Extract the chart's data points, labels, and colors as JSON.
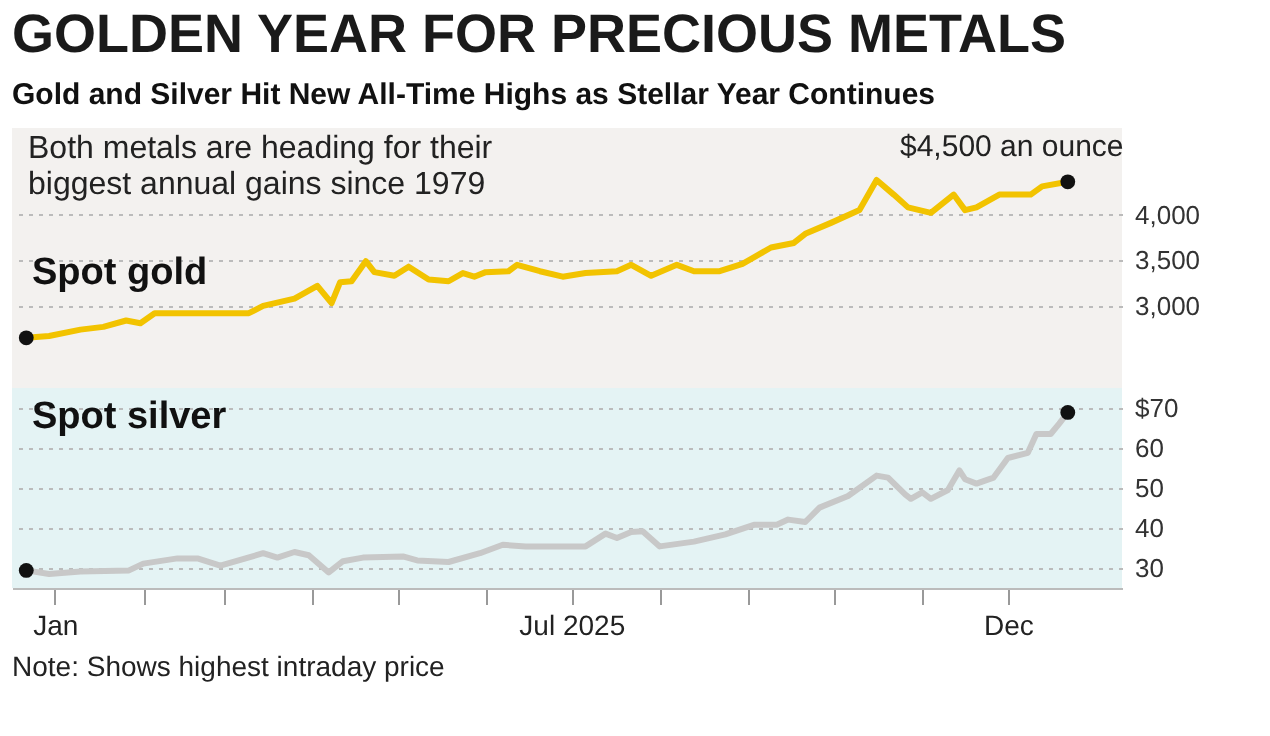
{
  "chart_data": [
    {
      "type": "line",
      "title": "GOLDEN YEAR FOR PRECIOUS METALS",
      "subtitle": "Gold and Silver Hit New All-Time Highs as Stellar Year Continues",
      "annotations": [
        "Both metals are heading for their biggest annual gains since 1979",
        {
          "text": "$4,500 an ounce",
          "x": "2025-12-22",
          "y": 4360
        }
      ],
      "tick_labels": "y",
      "grid": "y",
      "xlim": [
        "2024-12-17",
        "2026-01-10"
      ],
      "ylim": [
        2100,
        4950
      ],
      "yticks": [
        {
          "value": 3000,
          "label": "3,000"
        },
        {
          "value": 3500,
          "label": "3,500"
        },
        {
          "value": 4000,
          "label": "4,000"
        }
      ],
      "series": [
        {
          "name": "Spot gold",
          "color": "#f2c300",
          "x": [
            "2024-12-22",
            "2024-12-30",
            "2025-01-10",
            "2025-01-18",
            "2025-01-26",
            "2025-01-31",
            "2025-02-05",
            "2025-03-10",
            "2025-03-15",
            "2025-03-26",
            "2025-04-03",
            "2025-04-08",
            "2025-04-11",
            "2025-04-15",
            "2025-04-20",
            "2025-04-23",
            "2025-04-30",
            "2025-05-05",
            "2025-05-12",
            "2025-05-19",
            "2025-05-24",
            "2025-05-28",
            "2025-06-01",
            "2025-06-09",
            "2025-06-12",
            "2025-06-20",
            "2025-06-28",
            "2025-07-06",
            "2025-07-17",
            "2025-07-22",
            "2025-07-29",
            "2025-08-07",
            "2025-08-13",
            "2025-08-22",
            "2025-08-30",
            "2025-09-09",
            "2025-09-17",
            "2025-09-21",
            "2025-09-30",
            "2025-10-10",
            "2025-10-16",
            "2025-10-22",
            "2025-10-27",
            "2025-11-04",
            "2025-11-12",
            "2025-11-16",
            "2025-11-20",
            "2025-11-28",
            "2025-12-09",
            "2025-12-13",
            "2025-12-22"
          ],
          "values": [
            2650,
            2670,
            2740,
            2770,
            2840,
            2810,
            2920,
            2920,
            3000,
            3080,
            3220,
            3030,
            3260,
            3270,
            3490,
            3370,
            3330,
            3430,
            3290,
            3270,
            3360,
            3320,
            3370,
            3380,
            3450,
            3380,
            3320,
            3360,
            3380,
            3450,
            3330,
            3450,
            3380,
            3380,
            3460,
            3640,
            3690,
            3790,
            3910,
            4050,
            4380,
            4220,
            4080,
            4020,
            4220,
            4050,
            4080,
            4220,
            4220,
            4310,
            4360
          ]
        }
      ]
    },
    {
      "type": "line",
      "annotations": [
        "Note: Shows highest intraday price"
      ],
      "grid": "y",
      "xlim": [
        "2024-12-17",
        "2026-01-10"
      ],
      "ylim": [
        25,
        75
      ],
      "yticks": [
        30,
        40,
        50,
        60,
        {
          "value": 70,
          "label": "$70"
        }
      ],
      "xticks": [
        {
          "value": "2025-01-01",
          "label": "Jan"
        },
        {
          "value": "2025-02-01",
          "label": null
        },
        {
          "value": "2025-03-01",
          "label": null
        },
        {
          "value": "2025-04-01",
          "label": null
        },
        {
          "value": "2025-05-01",
          "label": null
        },
        {
          "value": "2025-06-01",
          "label": null
        },
        {
          "value": "2025-07-01",
          "label": "Jul 2025"
        },
        {
          "value": "2025-08-01",
          "label": null
        },
        {
          "value": "2025-09-01",
          "label": null
        },
        {
          "value": "2025-10-01",
          "label": null
        },
        {
          "value": "2025-11-01",
          "label": null
        },
        {
          "value": "2025-12-01",
          "label": "Dec"
        }
      ],
      "series": [
        {
          "name": "Spot silver",
          "color": "#c8c8c8",
          "x": [
            "2024-12-22",
            "2024-12-30",
            "2025-01-10",
            "2025-01-27",
            "2025-02-01",
            "2025-02-13",
            "2025-02-20",
            "2025-02-28",
            "2025-03-15",
            "2025-03-20",
            "2025-03-26",
            "2025-03-31",
            "2025-04-07",
            "2025-04-12",
            "2025-04-19",
            "2025-05-03",
            "2025-05-08",
            "2025-05-19",
            "2025-05-30",
            "2025-06-07",
            "2025-06-15",
            "2025-07-06",
            "2025-07-13",
            "2025-07-17",
            "2025-07-22",
            "2025-07-26",
            "2025-08-01",
            "2025-08-13",
            "2025-08-24",
            "2025-09-03",
            "2025-09-11",
            "2025-09-15",
            "2025-09-21",
            "2025-09-26",
            "2025-10-06",
            "2025-10-16",
            "2025-10-20",
            "2025-10-26",
            "2025-10-28",
            "2025-11-01",
            "2025-11-04",
            "2025-11-10",
            "2025-11-14",
            "2025-11-16",
            "2025-11-20",
            "2025-11-26",
            "2025-12-01",
            "2025-12-08",
            "2025-12-11",
            "2025-12-16",
            "2025-12-19",
            "2025-12-22"
          ],
          "values": [
            29.4,
            28.5,
            29.1,
            29.4,
            31.1,
            32.4,
            32.4,
            30.6,
            33.7,
            32.6,
            34,
            33.2,
            28.9,
            31.7,
            32.6,
            32.9,
            31.9,
            31.5,
            33.7,
            35.8,
            35.4,
            35.4,
            38.6,
            37.5,
            39,
            39.2,
            35.4,
            36.6,
            38.4,
            40.8,
            40.8,
            42.1,
            41.5,
            45.1,
            48,
            53.1,
            52.6,
            48.4,
            47.3,
            48.9,
            47.3,
            49.5,
            54.4,
            52.2,
            51.1,
            52.6,
            57.5,
            58.8,
            63.5,
            63.5,
            66.1,
            68.9
          ]
        }
      ]
    }
  ]
}
